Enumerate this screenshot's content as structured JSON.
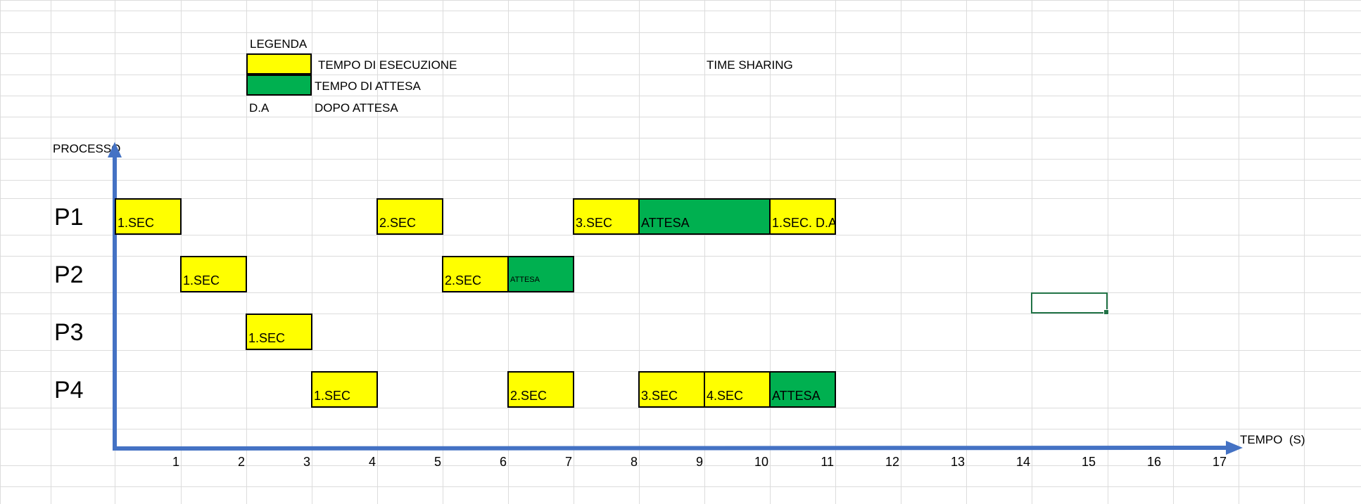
{
  "legend": {
    "title": "LEGENDA",
    "exec_label": "TEMPO DI ESECUZIONE",
    "wait_label": "TEMPO DI ATTESA",
    "da_abbr": "D.A",
    "da_label": "DOPO ATTESA"
  },
  "title": "TIME SHARING",
  "colors": {
    "exec": "#ffff00",
    "wait": "#00b050",
    "axis": "#4472c4",
    "grid": "#dcdcdc"
  },
  "chart_data": {
    "type": "gantt",
    "title": "TIME SHARING",
    "xlabel": "TEMPO  (S)",
    "ylabel": "PROCESSO",
    "xlim": [
      0,
      17
    ],
    "x_ticks": [
      1,
      2,
      3,
      4,
      5,
      6,
      7,
      8,
      9,
      10,
      11,
      12,
      13,
      14,
      15,
      16,
      17
    ],
    "processes": [
      "P1",
      "P2",
      "P3",
      "P4"
    ],
    "blocks": [
      {
        "process": "P1",
        "start": 0,
        "end": 1,
        "kind": "exec",
        "label": "1.SEC"
      },
      {
        "process": "P1",
        "start": 4,
        "end": 5,
        "kind": "exec",
        "label": "2.SEC"
      },
      {
        "process": "P1",
        "start": 7,
        "end": 8,
        "kind": "exec",
        "label": "3.SEC"
      },
      {
        "process": "P1",
        "start": 8,
        "end": 10,
        "kind": "wait",
        "label": "ATTESA"
      },
      {
        "process": "P1",
        "start": 10,
        "end": 11,
        "kind": "exec",
        "label": "1.SEC. D.A."
      },
      {
        "process": "P2",
        "start": 1,
        "end": 2,
        "kind": "exec",
        "label": "1.SEC"
      },
      {
        "process": "P2",
        "start": 5,
        "end": 6,
        "kind": "exec",
        "label": "2.SEC"
      },
      {
        "process": "P2",
        "start": 6,
        "end": 7,
        "kind": "wait",
        "label": "ATTESA",
        "small": true
      },
      {
        "process": "P3",
        "start": 2,
        "end": 3,
        "kind": "exec",
        "label": "1.SEC"
      },
      {
        "process": "P4",
        "start": 3,
        "end": 4,
        "kind": "exec",
        "label": "1.SEC"
      },
      {
        "process": "P4",
        "start": 6,
        "end": 7,
        "kind": "exec",
        "label": "2.SEC"
      },
      {
        "process": "P4",
        "start": 8,
        "end": 9,
        "kind": "exec",
        "label": "3.SEC"
      },
      {
        "process": "P4",
        "start": 9,
        "end": 10,
        "kind": "exec",
        "label": "4.SEC"
      },
      {
        "process": "P4",
        "start": 10,
        "end": 11,
        "kind": "wait",
        "label": "ATTESA"
      }
    ]
  }
}
